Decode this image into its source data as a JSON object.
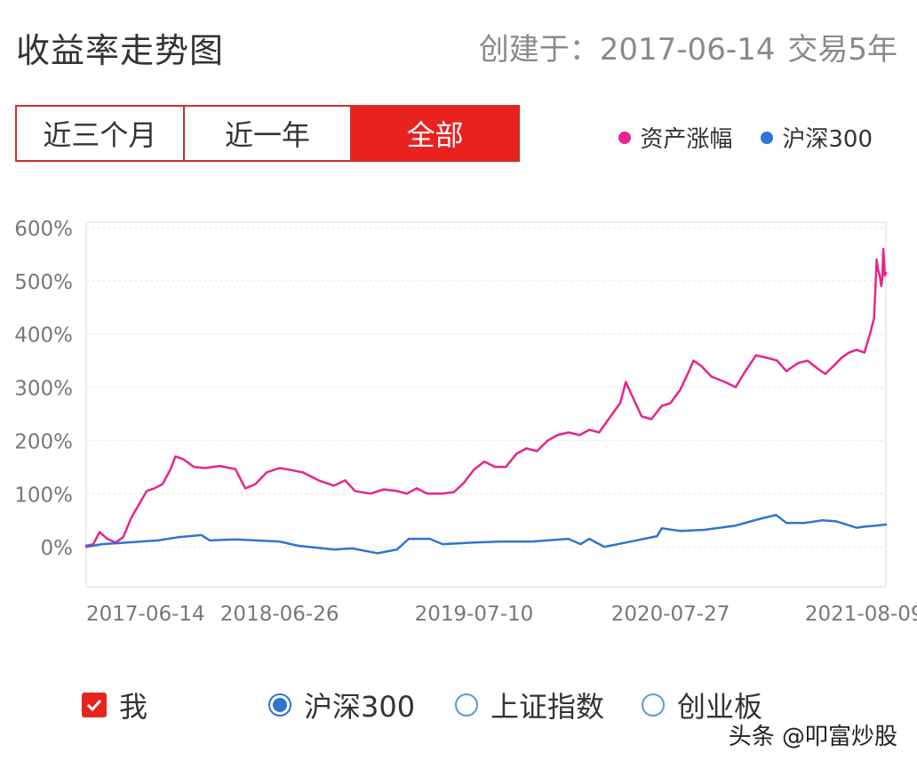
{
  "header": {
    "title": "收益率走势图",
    "created_label": "创建于：2017-06-14",
    "trade_years": "交易5年"
  },
  "range_tabs": [
    {
      "label": "近三个月",
      "active": false
    },
    {
      "label": "近一年",
      "active": false
    },
    {
      "label": "全部",
      "active": true
    }
  ],
  "legend": [
    {
      "label": "资产涨幅",
      "color": "#e8238a"
    },
    {
      "label": "沪深300",
      "color": "#2f74d0"
    }
  ],
  "options": {
    "me": {
      "label": "我",
      "checked": true
    },
    "radios": [
      {
        "label": "沪深300",
        "selected": true
      },
      {
        "label": "上证指数",
        "selected": false
      },
      {
        "label": "创业板",
        "selected": false
      }
    ]
  },
  "watermark": "头条 @叩富炒股",
  "chart_data": {
    "type": "line",
    "x_tick_labels": [
      "2017-06-14",
      "2018-06-26",
      "2019-07-10",
      "2020-07-27",
      "2021-08-09"
    ],
    "x_tick_dates": [
      "2017-06-14",
      "2018-06-26",
      "2019-07-10",
      "2020-07-27",
      "2021-08-09"
    ],
    "x_range": [
      "2017-06-14",
      "2021-09-20"
    ],
    "y_tick_labels": [
      "600%",
      "500%",
      "400%",
      "300%",
      "200%",
      "100%",
      "0%"
    ],
    "y_ticks": [
      600,
      500,
      400,
      300,
      200,
      100,
      0
    ],
    "ylim": [
      -75,
      610
    ],
    "grid": true,
    "legend_position": "top-right",
    "series": [
      {
        "name": "资产涨幅",
        "color": "#e8238a",
        "points": [
          [
            "2017-06-14",
            2
          ],
          [
            "2017-06-28",
            5
          ],
          [
            "2017-07-10",
            28
          ],
          [
            "2017-07-25",
            15
          ],
          [
            "2017-08-10",
            8
          ],
          [
            "2017-08-25",
            18
          ],
          [
            "2017-09-10",
            55
          ],
          [
            "2017-09-25",
            80
          ],
          [
            "2017-10-10",
            105
          ],
          [
            "2017-10-25",
            110
          ],
          [
            "2017-11-10",
            118
          ],
          [
            "2017-11-25",
            145
          ],
          [
            "2017-12-05",
            170
          ],
          [
            "2017-12-20",
            165
          ],
          [
            "2018-01-10",
            150
          ],
          [
            "2018-02-01",
            148
          ],
          [
            "2018-03-01",
            152
          ],
          [
            "2018-04-01",
            146
          ],
          [
            "2018-04-20",
            110
          ],
          [
            "2018-05-10",
            118
          ],
          [
            "2018-06-01",
            140
          ],
          [
            "2018-06-26",
            148
          ],
          [
            "2018-07-15",
            145
          ],
          [
            "2018-08-10",
            140
          ],
          [
            "2018-09-10",
            125
          ],
          [
            "2018-10-10",
            115
          ],
          [
            "2018-11-01",
            125
          ],
          [
            "2018-11-20",
            105
          ],
          [
            "2018-12-20",
            100
          ],
          [
            "2019-01-15",
            108
          ],
          [
            "2019-02-10",
            105
          ],
          [
            "2019-03-01",
            100
          ],
          [
            "2019-03-20",
            110
          ],
          [
            "2019-04-10",
            100
          ],
          [
            "2019-05-10",
            100
          ],
          [
            "2019-06-01",
            103
          ],
          [
            "2019-06-20",
            120
          ],
          [
            "2019-07-10",
            145
          ],
          [
            "2019-07-30",
            160
          ],
          [
            "2019-08-20",
            150
          ],
          [
            "2019-09-10",
            150
          ],
          [
            "2019-10-01",
            175
          ],
          [
            "2019-10-20",
            185
          ],
          [
            "2019-11-10",
            180
          ],
          [
            "2019-12-01",
            200
          ],
          [
            "2019-12-20",
            210
          ],
          [
            "2020-01-10",
            215
          ],
          [
            "2020-02-01",
            210
          ],
          [
            "2020-02-20",
            220
          ],
          [
            "2020-03-10",
            215
          ],
          [
            "2020-04-01",
            245
          ],
          [
            "2020-04-20",
            270
          ],
          [
            "2020-05-01",
            310
          ],
          [
            "2020-05-15",
            280
          ],
          [
            "2020-06-01",
            245
          ],
          [
            "2020-06-20",
            240
          ],
          [
            "2020-07-10",
            265
          ],
          [
            "2020-07-27",
            270
          ],
          [
            "2020-08-15",
            295
          ],
          [
            "2020-09-01",
            330
          ],
          [
            "2020-09-10",
            350
          ],
          [
            "2020-09-25",
            340
          ],
          [
            "2020-10-15",
            320
          ],
          [
            "2020-11-10",
            310
          ],
          [
            "2020-12-01",
            300
          ],
          [
            "2020-12-20",
            330
          ],
          [
            "2021-01-10",
            360
          ],
          [
            "2021-02-01",
            355
          ],
          [
            "2021-02-20",
            350
          ],
          [
            "2021-03-10",
            330
          ],
          [
            "2021-04-01",
            345
          ],
          [
            "2021-04-20",
            350
          ],
          [
            "2021-05-10",
            335
          ],
          [
            "2021-05-25",
            325
          ],
          [
            "2021-06-10",
            340
          ],
          [
            "2021-06-25",
            355
          ],
          [
            "2021-07-10",
            365
          ],
          [
            "2021-07-25",
            370
          ],
          [
            "2021-08-09",
            365
          ],
          [
            "2021-08-20",
            400
          ],
          [
            "2021-08-28",
            430
          ],
          [
            "2021-09-02",
            540
          ],
          [
            "2021-09-05",
            520
          ],
          [
            "2021-09-08",
            510
          ],
          [
            "2021-09-11",
            490
          ],
          [
            "2021-09-13",
            505
          ],
          [
            "2021-09-15",
            560
          ],
          [
            "2021-09-18",
            510
          ],
          [
            "2021-09-20",
            515
          ]
        ]
      },
      {
        "name": "沪深300",
        "color": "#2f74d0",
        "points": [
          [
            "2017-06-14",
            0
          ],
          [
            "2017-07-15",
            5
          ],
          [
            "2017-09-01",
            8
          ],
          [
            "2017-11-01",
            12
          ],
          [
            "2017-12-10",
            18
          ],
          [
            "2018-01-25",
            22
          ],
          [
            "2018-02-10",
            12
          ],
          [
            "2018-04-01",
            14
          ],
          [
            "2018-06-26",
            10
          ],
          [
            "2018-08-01",
            2
          ],
          [
            "2018-10-10",
            -5
          ],
          [
            "2018-11-15",
            -3
          ],
          [
            "2019-01-03",
            -12
          ],
          [
            "2019-02-10",
            -5
          ],
          [
            "2019-03-05",
            15
          ],
          [
            "2019-04-15",
            15
          ],
          [
            "2019-05-10",
            5
          ],
          [
            "2019-07-10",
            8
          ],
          [
            "2019-09-01",
            10
          ],
          [
            "2019-11-01",
            10
          ],
          [
            "2020-01-10",
            15
          ],
          [
            "2020-02-03",
            5
          ],
          [
            "2020-02-20",
            15
          ],
          [
            "2020-03-20",
            0
          ],
          [
            "2020-05-01",
            8
          ],
          [
            "2020-07-01",
            20
          ],
          [
            "2020-07-10",
            35
          ],
          [
            "2020-08-15",
            30
          ],
          [
            "2020-10-01",
            32
          ],
          [
            "2020-12-01",
            40
          ],
          [
            "2021-01-15",
            52
          ],
          [
            "2021-02-18",
            60
          ],
          [
            "2021-03-10",
            45
          ],
          [
            "2021-04-15",
            45
          ],
          [
            "2021-05-20",
            50
          ],
          [
            "2021-06-15",
            48
          ],
          [
            "2021-07-25",
            36
          ],
          [
            "2021-08-09",
            38
          ],
          [
            "2021-09-01",
            40
          ],
          [
            "2021-09-20",
            42
          ]
        ]
      }
    ]
  }
}
